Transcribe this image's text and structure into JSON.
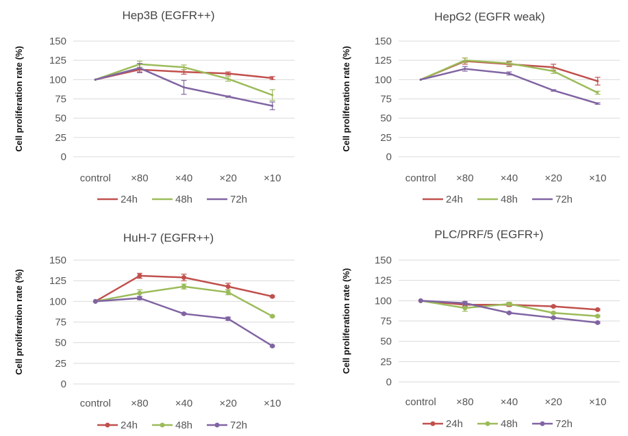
{
  "chart_data": [
    {
      "type": "line",
      "title": "Hep3B (EGFR++)",
      "ylabel": "Cell proliferation  rate (%)",
      "xlabel": "",
      "categories": [
        "control",
        "×80",
        "×40",
        "×20",
        "×10"
      ],
      "ylim": [
        0,
        150
      ],
      "yticks": [
        "0",
        "25",
        "50",
        "75",
        "100",
        "125",
        "150"
      ],
      "grid": true,
      "legend": "bottom",
      "markers": false,
      "series": [
        {
          "name": "24h",
          "color": "#c0504d",
          "values": [
            100,
            113,
            110,
            108,
            102
          ],
          "errors": [
            0,
            3,
            3,
            2,
            2
          ]
        },
        {
          "name": "48h",
          "color": "#9bbb59",
          "values": [
            100,
            120,
            116,
            101,
            80
          ],
          "errors": [
            0,
            4,
            3,
            3,
            7
          ]
        },
        {
          "name": "72h",
          "color": "#8064a2",
          "values": [
            100,
            115,
            90,
            78,
            66
          ],
          "errors": [
            0,
            6,
            9,
            1,
            5
          ]
        }
      ]
    },
    {
      "type": "line",
      "title": "HepG2 (EGFR weak)",
      "ylabel": "Cell proliferation  rate (%)",
      "xlabel": "",
      "categories": [
        "control",
        "×80",
        "×40",
        "×20",
        "×10"
      ],
      "ylim": [
        0,
        150
      ],
      "yticks": [
        "0",
        "25",
        "50",
        "75",
        "100",
        "125",
        "150"
      ],
      "grid": true,
      "legend": "bottom",
      "markers": false,
      "series": [
        {
          "name": "24h",
          "color": "#c0504d",
          "values": [
            100,
            124,
            120,
            116,
            98
          ],
          "errors": [
            0,
            4,
            3,
            4,
            5
          ]
        },
        {
          "name": "48h",
          "color": "#9bbb59",
          "values": [
            100,
            125,
            121,
            111,
            83
          ],
          "errors": [
            0,
            3,
            3,
            3,
            2
          ]
        },
        {
          "name": "72h",
          "color": "#8064a2",
          "values": [
            100,
            114,
            108,
            86,
            69
          ],
          "errors": [
            0,
            3,
            2,
            1,
            1
          ]
        }
      ]
    },
    {
      "type": "line",
      "title": "HuH-7 (EGFR++)",
      "ylabel": "Cell proliferation  rate (%)",
      "xlabel": "",
      "categories": [
        "control",
        "×80",
        "×40",
        "×20",
        "×10"
      ],
      "ylim": [
        0,
        150
      ],
      "yticks": [
        "0",
        "25",
        "50",
        "75",
        "100",
        "125",
        "150"
      ],
      "grid": true,
      "legend": "bottom",
      "markers": true,
      "series": [
        {
          "name": "24h",
          "color": "#c0504d",
          "values": [
            100,
            131,
            129,
            118,
            106
          ],
          "errors": [
            0,
            3,
            4,
            4,
            1
          ]
        },
        {
          "name": "48h",
          "color": "#9bbb59",
          "values": [
            100,
            110,
            118,
            111,
            82
          ],
          "errors": [
            0,
            4,
            3,
            3,
            1
          ]
        },
        {
          "name": "72h",
          "color": "#8064a2",
          "values": [
            100,
            104,
            85,
            79,
            46
          ],
          "errors": [
            0,
            2,
            1,
            2,
            1
          ]
        }
      ]
    },
    {
      "type": "line",
      "title": "PLC/PRF/5 (EGFR+)",
      "ylabel": "Cell proliferation  rate (%)",
      "xlabel": "",
      "categories": [
        "control",
        "×80",
        "×40",
        "×20",
        "×10"
      ],
      "ylim": [
        0,
        150
      ],
      "yticks": [
        "0",
        "25",
        "50",
        "75",
        "100",
        "125",
        "150"
      ],
      "grid": true,
      "legend": "bottom",
      "markers": true,
      "series": [
        {
          "name": "24h",
          "color": "#c0504d",
          "values": [
            100,
            95,
            95,
            93,
            89
          ],
          "errors": [
            0,
            2,
            2,
            1,
            1
          ]
        },
        {
          "name": "48h",
          "color": "#9bbb59",
          "values": [
            100,
            91,
            96,
            85,
            81
          ],
          "errors": [
            0,
            4,
            2,
            1,
            1
          ]
        },
        {
          "name": "72h",
          "color": "#8064a2",
          "values": [
            100,
            97,
            85,
            79,
            73
          ],
          "errors": [
            0,
            2,
            1,
            1,
            1
          ]
        }
      ]
    }
  ]
}
